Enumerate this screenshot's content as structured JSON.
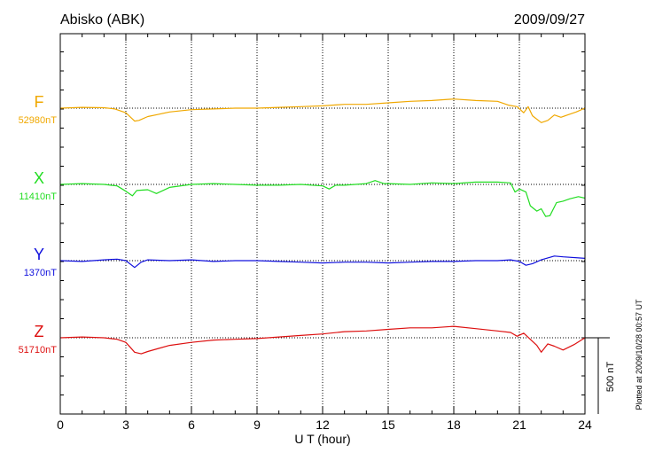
{
  "chart_data": {
    "type": "line",
    "title": "Abisko (ABK)",
    "date": "2009/09/27",
    "xlabel": "U T (hour)",
    "xlim": [
      0,
      24
    ],
    "xticks": [
      0,
      3,
      6,
      9,
      12,
      15,
      18,
      21,
      24
    ],
    "scale_label": "500 nT",
    "scale_nT": 500,
    "footer": "Plotted at 2009/10/28 00:57 UT",
    "grid": "dotted, every 3 hours plus baselines",
    "series": [
      {
        "name": "F",
        "baseline_label": "52980nT",
        "color": "#f0a800",
        "points": [
          [
            0,
            0
          ],
          [
            1,
            5
          ],
          [
            2,
            3
          ],
          [
            2.5,
            -5
          ],
          [
            3,
            -30
          ],
          [
            3.4,
            -85
          ],
          [
            3.6,
            -80
          ],
          [
            4,
            -55
          ],
          [
            4.5,
            -40
          ],
          [
            5,
            -25
          ],
          [
            6,
            -10
          ],
          [
            7,
            -5
          ],
          [
            8,
            0
          ],
          [
            9,
            0
          ],
          [
            10,
            5
          ],
          [
            11,
            10
          ],
          [
            12,
            15
          ],
          [
            13,
            25
          ],
          [
            14,
            25
          ],
          [
            15,
            35
          ],
          [
            16,
            45
          ],
          [
            17,
            50
          ],
          [
            18,
            60
          ],
          [
            19,
            50
          ],
          [
            20,
            45
          ],
          [
            20.5,
            20
          ],
          [
            20.9,
            10
          ],
          [
            21.2,
            -30
          ],
          [
            21.4,
            10
          ],
          [
            21.6,
            -50
          ],
          [
            22,
            -95
          ],
          [
            22.3,
            -80
          ],
          [
            22.6,
            -45
          ],
          [
            22.9,
            -60
          ],
          [
            23.2,
            -45
          ],
          [
            23.6,
            -25
          ],
          [
            24,
            0
          ]
        ]
      },
      {
        "name": "X",
        "baseline_label": "11410nT",
        "color": "#22dd22",
        "points": [
          [
            0,
            0
          ],
          [
            1,
            5
          ],
          [
            2,
            0
          ],
          [
            2.6,
            -10
          ],
          [
            3,
            -45
          ],
          [
            3.3,
            -75
          ],
          [
            3.5,
            -40
          ],
          [
            4,
            -35
          ],
          [
            4.4,
            -60
          ],
          [
            5,
            -20
          ],
          [
            6,
            0
          ],
          [
            7,
            5
          ],
          [
            8,
            0
          ],
          [
            9,
            -5
          ],
          [
            10,
            -5
          ],
          [
            11,
            0
          ],
          [
            12,
            -10
          ],
          [
            12.3,
            -30
          ],
          [
            12.6,
            -5
          ],
          [
            13,
            -5
          ],
          [
            14,
            5
          ],
          [
            14.4,
            25
          ],
          [
            14.8,
            5
          ],
          [
            15,
            5
          ],
          [
            16,
            0
          ],
          [
            17,
            10
          ],
          [
            18,
            5
          ],
          [
            19,
            15
          ],
          [
            20,
            15
          ],
          [
            20.6,
            10
          ],
          [
            20.8,
            -50
          ],
          [
            21,
            -30
          ],
          [
            21.3,
            -50
          ],
          [
            21.5,
            -140
          ],
          [
            21.8,
            -175
          ],
          [
            22,
            -160
          ],
          [
            22.2,
            -210
          ],
          [
            22.4,
            -205
          ],
          [
            22.7,
            -120
          ],
          [
            23,
            -110
          ],
          [
            23.3,
            -95
          ],
          [
            23.7,
            -80
          ],
          [
            24,
            -90
          ]
        ]
      },
      {
        "name": "Y",
        "baseline_label": "1370nT",
        "color": "#1010dd",
        "points": [
          [
            0,
            0
          ],
          [
            1,
            -5
          ],
          [
            2,
            5
          ],
          [
            2.6,
            10
          ],
          [
            3,
            0
          ],
          [
            3.4,
            -45
          ],
          [
            3.7,
            -10
          ],
          [
            4,
            5
          ],
          [
            5,
            0
          ],
          [
            6,
            5
          ],
          [
            7,
            -5
          ],
          [
            8,
            0
          ],
          [
            9,
            0
          ],
          [
            10,
            -5
          ],
          [
            11,
            -10
          ],
          [
            12,
            -15
          ],
          [
            13,
            -10
          ],
          [
            14,
            -10
          ],
          [
            15,
            -15
          ],
          [
            16,
            -10
          ],
          [
            17,
            -5
          ],
          [
            18,
            -5
          ],
          [
            19,
            0
          ],
          [
            20,
            0
          ],
          [
            20.6,
            5
          ],
          [
            21,
            -5
          ],
          [
            21.3,
            -30
          ],
          [
            21.6,
            -20
          ],
          [
            22,
            5
          ],
          [
            22.6,
            30
          ],
          [
            23,
            25
          ],
          [
            24,
            15
          ]
        ]
      },
      {
        "name": "Z",
        "baseline_label": "51710nT",
        "color": "#dd1010",
        "points": [
          [
            0,
            0
          ],
          [
            1,
            5
          ],
          [
            2,
            0
          ],
          [
            2.6,
            -10
          ],
          [
            3,
            -30
          ],
          [
            3.4,
            -95
          ],
          [
            3.7,
            -105
          ],
          [
            4,
            -90
          ],
          [
            4.5,
            -70
          ],
          [
            5,
            -50
          ],
          [
            6,
            -30
          ],
          [
            7,
            -15
          ],
          [
            8,
            -10
          ],
          [
            9,
            -5
          ],
          [
            10,
            5
          ],
          [
            11,
            15
          ],
          [
            12,
            25
          ],
          [
            13,
            40
          ],
          [
            14,
            45
          ],
          [
            15,
            55
          ],
          [
            16,
            65
          ],
          [
            17,
            65
          ],
          [
            18,
            75
          ],
          [
            19,
            60
          ],
          [
            20,
            45
          ],
          [
            20.6,
            35
          ],
          [
            20.9,
            10
          ],
          [
            21.2,
            30
          ],
          [
            21.5,
            -10
          ],
          [
            21.8,
            -50
          ],
          [
            22,
            -95
          ],
          [
            22.3,
            -40
          ],
          [
            22.6,
            -55
          ],
          [
            23,
            -80
          ],
          [
            23.5,
            -45
          ],
          [
            24,
            0
          ]
        ]
      }
    ]
  }
}
